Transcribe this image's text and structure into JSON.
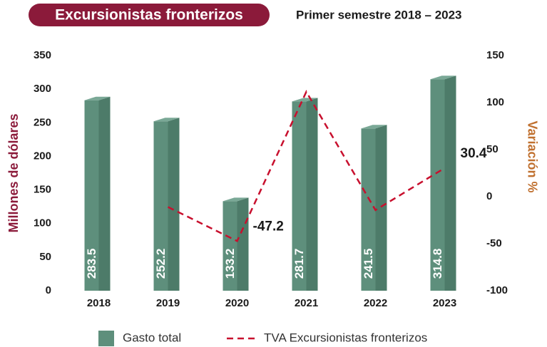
{
  "chart_data": {
    "type": "bar_line",
    "title": "Excursionistas fronterizos",
    "subtitle": "Primer semestre 2018 – 2023",
    "y_label": "Millones de dólares",
    "y2_label": "Variación %",
    "categories": [
      "2018",
      "2019",
      "2020",
      "2021",
      "2022",
      "2023"
    ],
    "series": [
      {
        "name": "Gasto total",
        "type": "bar",
        "color": "#5e8f7c",
        "values": [
          283.5,
          252.2,
          133.2,
          281.7,
          241.5,
          314.8
        ]
      },
      {
        "name": "TVA Excursionistas fronterizos",
        "type": "line",
        "axis": "y2",
        "color": "#c8102e",
        "values": [
          null,
          -11.0,
          -47.2,
          111.5,
          -14.3,
          30.4
        ],
        "value_labels": [
          null,
          null,
          "-47.2",
          null,
          null,
          "30.4"
        ]
      }
    ],
    "ylim": [
      0,
      350
    ],
    "yticks": [
      0,
      50,
      100,
      150,
      200,
      250,
      300,
      350
    ],
    "y2lim": [
      -100,
      150
    ],
    "y2ticks": [
      -100,
      -50,
      0,
      50,
      100,
      150
    ],
    "grid": false
  }
}
